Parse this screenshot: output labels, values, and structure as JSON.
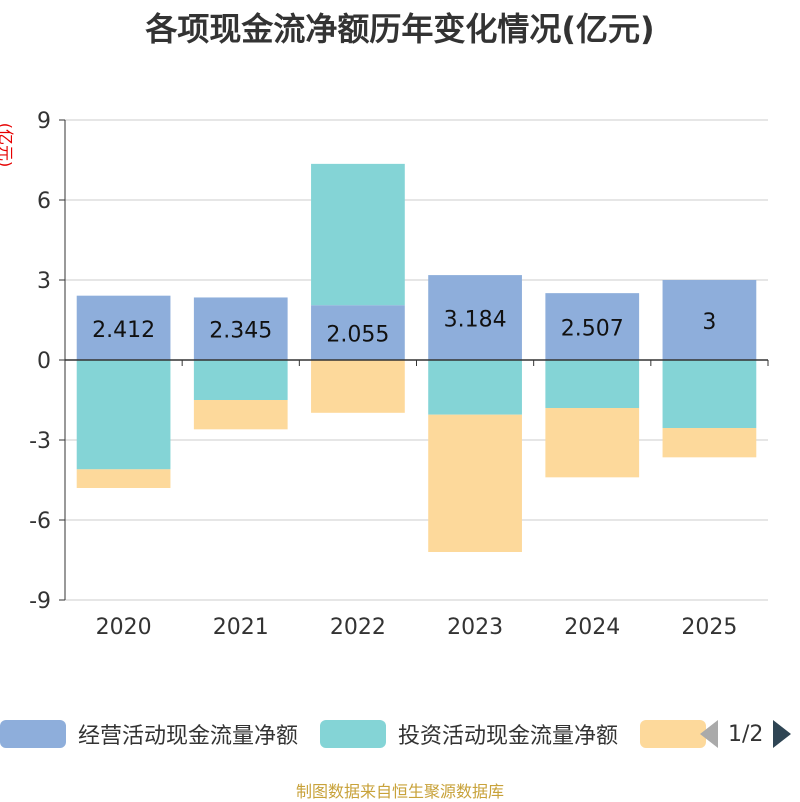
{
  "chart_data": {
    "type": "bar",
    "stacked": true,
    "title": "各项现金流净额历年变化情况(亿元)",
    "ylabel": "(亿元)",
    "categories": [
      "2020",
      "2021",
      "2022",
      "2023",
      "2024",
      "2025"
    ],
    "ylim": [
      -9,
      9
    ],
    "yticks": [
      9,
      6,
      3,
      0,
      -3,
      -6,
      -9
    ],
    "series": [
      {
        "name": "经营活动现金流量净额",
        "color": "#8eaedb",
        "values": [
          2.412,
          2.345,
          2.055,
          3.184,
          2.507,
          3
        ],
        "labels": [
          "2.412",
          "2.345",
          "2.055",
          "3.184",
          "2.507",
          "3"
        ]
      },
      {
        "name": "投资活动现金流量净额",
        "color": "#84d4d6",
        "values": [
          -4.1,
          -1.5,
          5.3,
          -2.05,
          -1.8,
          -2.55
        ]
      },
      {
        "name": "",
        "color": "#fdd99b",
        "values": [
          -0.7,
          -1.1,
          -1.98,
          -5.15,
          -2.6,
          -1.1
        ]
      }
    ]
  },
  "legend": {
    "items": [
      {
        "label": "经营活动现金流量净额",
        "color": "#8eaedb"
      },
      {
        "label": "投资活动现金流量净额",
        "color": "#84d4d6"
      },
      {
        "label": "",
        "color": "#fdd99b"
      }
    ],
    "page_indicator": "1/2"
  },
  "source": "制图数据来自恒生聚源数据库"
}
